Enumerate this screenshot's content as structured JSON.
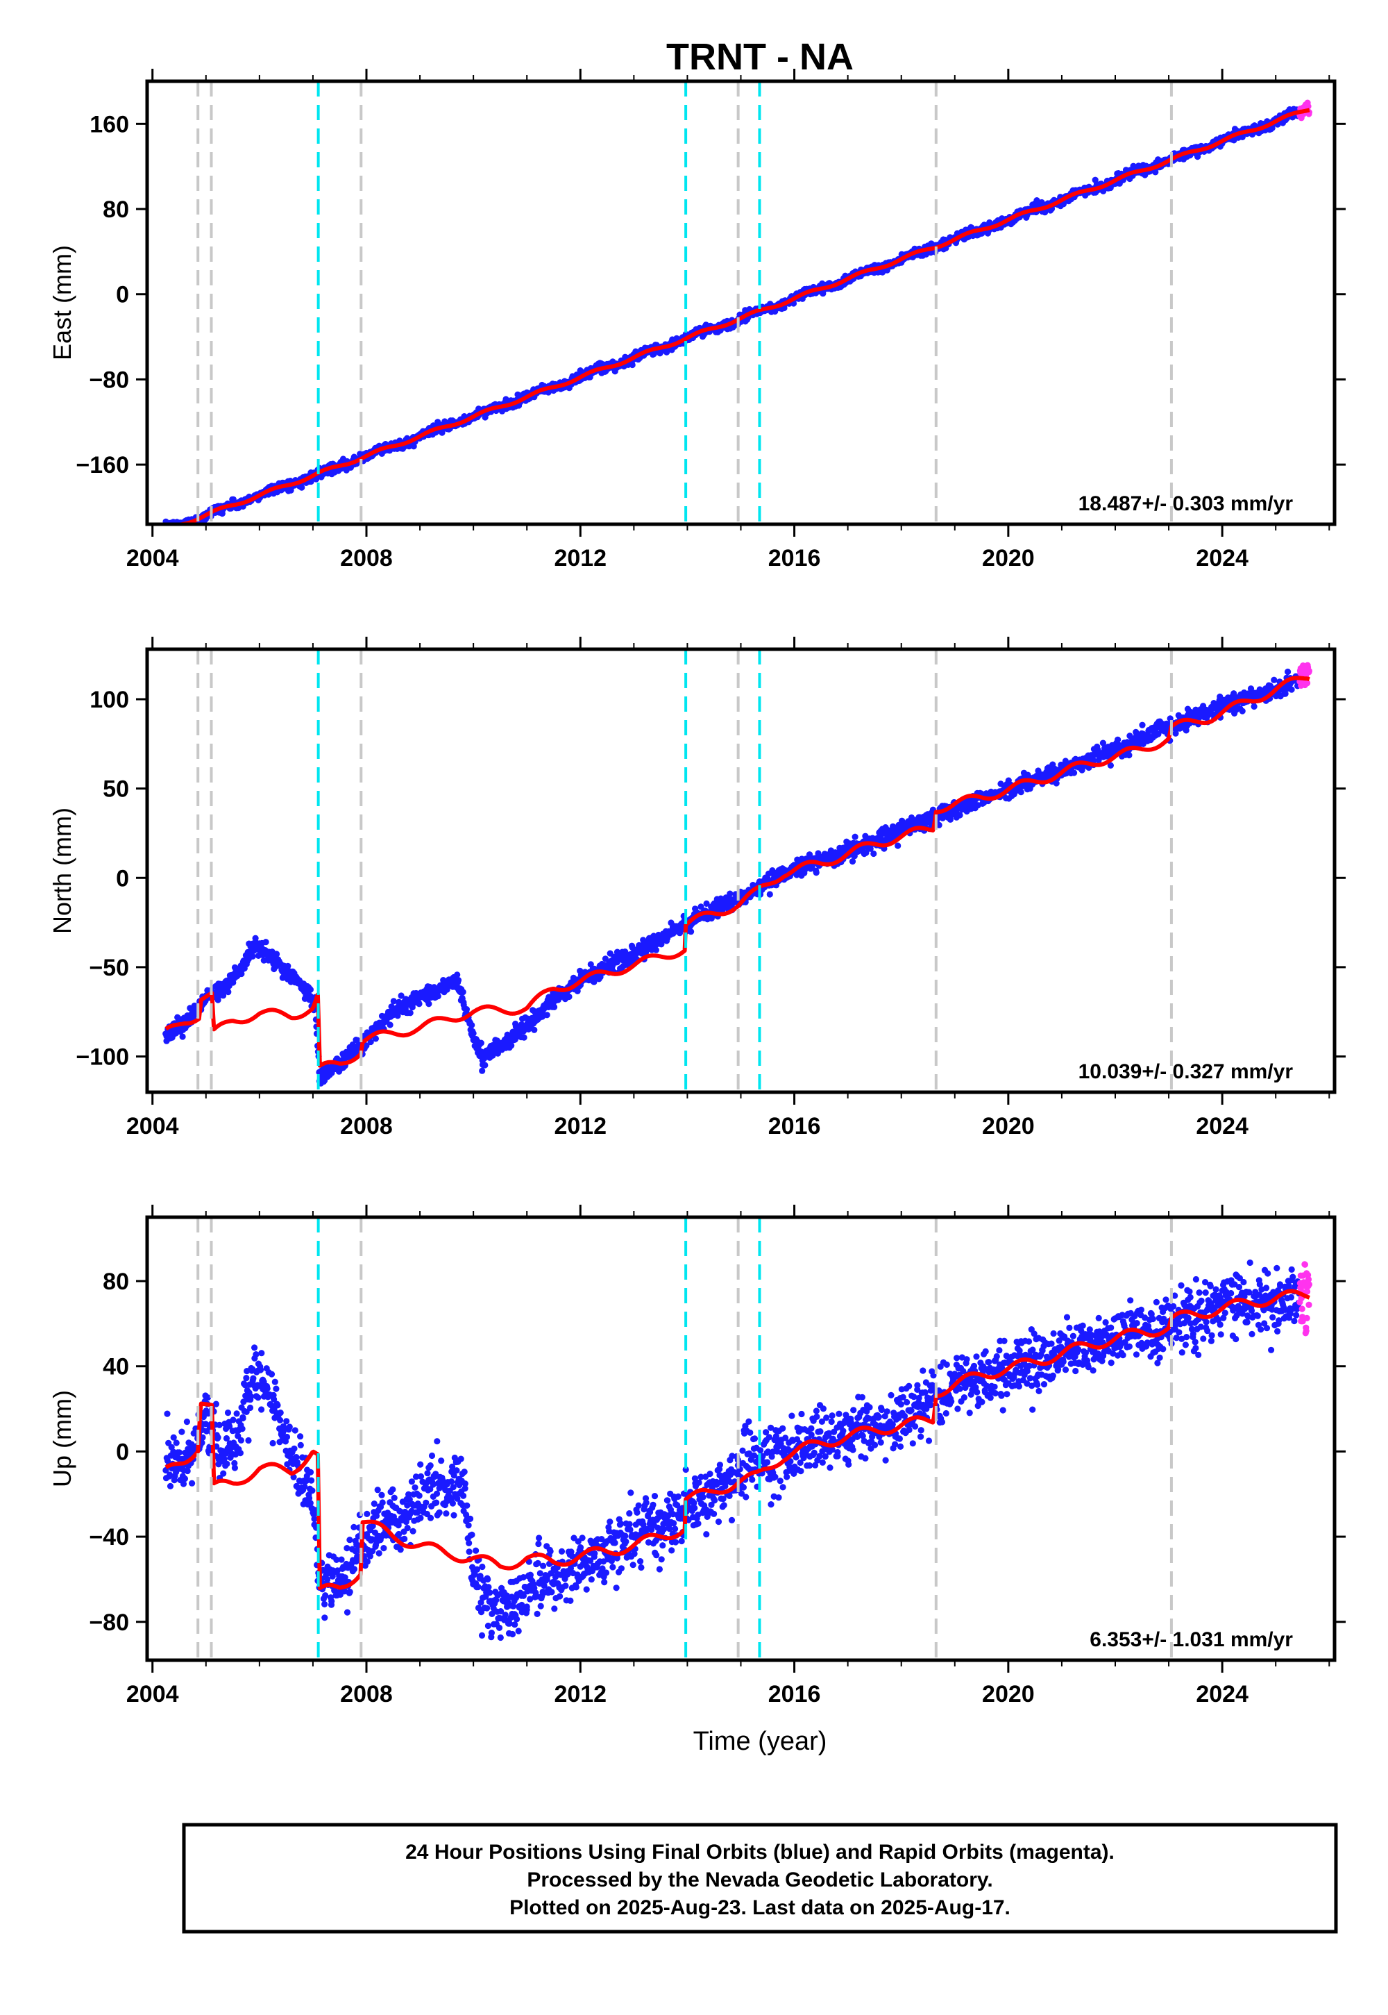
{
  "title": "TRNT - NA",
  "colors": {
    "final": "#1a1aff",
    "rapid": "#ff33ee",
    "model": "#ff0000",
    "antenna_change": "#c8c8c8",
    "earthquake": "#00e6f0"
  },
  "chart_data": [
    {
      "type": "scatter",
      "ylabel": "East (mm)",
      "rate_label": "18.487+/- 0.303 mm/yr",
      "xlim": [
        2003.9,
        2026.1
      ],
      "ylim": [
        -216,
        200
      ],
      "xticks": [
        2004,
        2008,
        2012,
        2016,
        2020,
        2024
      ],
      "xtick_labels": [
        "2004",
        "2008",
        "2012",
        "2016",
        "2020",
        "2024"
      ],
      "yticks": [
        160,
        80,
        0,
        -80,
        -160
      ],
      "ytick_labels": [
        "160",
        "80",
        "0",
        "−80",
        "−160"
      ],
      "model": {
        "rate": 18.487,
        "t0": 2016.0,
        "y0": -4,
        "annual_amp": 1.5,
        "offsets": []
      },
      "data_start": 2004.25,
      "data_end": 2025.45,
      "rapid_end": 2025.63,
      "noise": 2.2,
      "grid": false
    },
    {
      "type": "scatter",
      "ylabel": "North (mm)",
      "rate_label": "10.039+/- 0.327 mm/yr",
      "xlim": [
        2003.9,
        2026.1
      ],
      "ylim": [
        -120,
        128
      ],
      "xticks": [
        2004,
        2008,
        2012,
        2016,
        2020,
        2024
      ],
      "xtick_labels": [
        "2004",
        "2008",
        "2012",
        "2016",
        "2020",
        "2024"
      ],
      "yticks": [
        100,
        50,
        0,
        -50,
        -100
      ],
      "ytick_labels": [
        "100",
        "50",
        "0",
        "−50",
        "−100"
      ],
      "model_path": [
        [
          2004.25,
          -87
        ],
        [
          2004.6,
          -80
        ],
        [
          2004.88,
          -77
        ],
        [
          2004.9,
          -67
        ],
        [
          2005.12,
          -66
        ],
        [
          2005.14,
          -87
        ],
        [
          2005.5,
          -80
        ],
        [
          2006.0,
          -76
        ],
        [
          2006.6,
          -77
        ],
        [
          2007.0,
          -73
        ],
        [
          2007.1,
          -66
        ],
        [
          2007.12,
          -107
        ],
        [
          2007.5,
          -104
        ],
        [
          2007.9,
          -97
        ],
        [
          2007.92,
          -91
        ],
        [
          2008.5,
          -87
        ],
        [
          2009.0,
          -84
        ],
        [
          2009.5,
          -79
        ],
        [
          2010.0,
          -75
        ],
        [
          2010.5,
          -74
        ],
        [
          2011.0,
          -73
        ],
        [
          2011.5,
          -62
        ],
        [
          2012.0,
          -58
        ],
        [
          2012.5,
          -53
        ],
        [
          2013.0,
          -49
        ],
        [
          2013.5,
          -44
        ],
        [
          2013.95,
          -40
        ],
        [
          2013.97,
          -26
        ],
        [
          2014.4,
          -21
        ],
        [
          2014.95,
          -15
        ],
        [
          2015.3,
          -8
        ],
        [
          2015.8,
          3
        ],
        [
          2016.5,
          8
        ],
        [
          2017.5,
          19
        ],
        [
          2018.6,
          28
        ],
        [
          2018.65,
          39
        ],
        [
          2019.5,
          45
        ],
        [
          2020.5,
          54
        ],
        [
          2021.5,
          64
        ],
        [
          2022.5,
          72
        ],
        [
          2023.0,
          78
        ],
        [
          2023.05,
          84
        ],
        [
          2023.8,
          90
        ],
        [
          2024.5,
          99
        ],
        [
          2025.6,
          113
        ]
      ],
      "data_path": [
        [
          2004.25,
          -88
        ],
        [
          2004.6,
          -81
        ],
        [
          2004.85,
          -73
        ],
        [
          2005.0,
          -68
        ],
        [
          2005.3,
          -62
        ],
        [
          2005.5,
          -58
        ],
        [
          2005.7,
          -48
        ],
        [
          2005.9,
          -38
        ],
        [
          2006.1,
          -42
        ],
        [
          2006.4,
          -50
        ],
        [
          2006.8,
          -60
        ],
        [
          2007.05,
          -72
        ],
        [
          2007.12,
          -112
        ],
        [
          2007.6,
          -101
        ],
        [
          2008.0,
          -90
        ],
        [
          2008.5,
          -75
        ],
        [
          2009.0,
          -66
        ],
        [
          2009.4,
          -62
        ],
        [
          2009.7,
          -57
        ],
        [
          2009.9,
          -80
        ],
        [
          2010.15,
          -101
        ],
        [
          2010.6,
          -92
        ],
        [
          2011.0,
          -82
        ],
        [
          2011.5,
          -69
        ],
        [
          2012.0,
          -57
        ],
        [
          2012.5,
          -50
        ],
        [
          2013.0,
          -43
        ],
        [
          2013.5,
          -34
        ],
        [
          2013.95,
          -26
        ],
        [
          2014.5,
          -17
        ],
        [
          2015.0,
          -12
        ],
        [
          2015.5,
          -3
        ],
        [
          2016.0,
          5
        ],
        [
          2017.0,
          15
        ],
        [
          2018.0,
          27
        ],
        [
          2019.0,
          38
        ],
        [
          2020.0,
          50
        ],
        [
          2021.0,
          60
        ],
        [
          2022.0,
          72
        ],
        [
          2023.0,
          85
        ],
        [
          2024.0,
          96
        ],
        [
          2025.0,
          105
        ],
        [
          2025.6,
          116
        ]
      ],
      "data_start": 2004.25,
      "data_end": 2025.45,
      "rapid_end": 2025.63,
      "noise": 2.4,
      "grid": false
    },
    {
      "type": "scatter",
      "ylabel": "Up (mm)",
      "xlabel": "Time (year)",
      "rate_label": "6.353+/- 1.031 mm/yr",
      "xlim": [
        2003.9,
        2026.1
      ],
      "ylim": [
        -98,
        110
      ],
      "xticks": [
        2004,
        2008,
        2012,
        2016,
        2020,
        2024
      ],
      "xtick_labels": [
        "2004",
        "2008",
        "2012",
        "2016",
        "2020",
        "2024"
      ],
      "yticks": [
        80,
        40,
        0,
        -40,
        -80
      ],
      "ytick_labels": [
        "80",
        "40",
        "0",
        "−40",
        "−80"
      ],
      "model_path": [
        [
          2004.25,
          -10
        ],
        [
          2004.6,
          -4
        ],
        [
          2004.85,
          2
        ],
        [
          2004.9,
          24
        ],
        [
          2005.12,
          20
        ],
        [
          2005.14,
          -17
        ],
        [
          2005.5,
          -15
        ],
        [
          2006.0,
          -8
        ],
        [
          2006.6,
          -9
        ],
        [
          2007.0,
          0
        ],
        [
          2007.1,
          -3
        ],
        [
          2007.12,
          -66
        ],
        [
          2007.5,
          -64
        ],
        [
          2007.9,
          -56
        ],
        [
          2007.92,
          -32
        ],
        [
          2008.5,
          -40
        ],
        [
          2009.0,
          -44
        ],
        [
          2009.5,
          -48
        ],
        [
          2010.0,
          -50
        ],
        [
          2010.5,
          -54
        ],
        [
          2011.0,
          -50
        ],
        [
          2011.5,
          -52
        ],
        [
          2012.0,
          -49
        ],
        [
          2012.5,
          -47
        ],
        [
          2013.0,
          -44
        ],
        [
          2013.5,
          -40
        ],
        [
          2013.95,
          -36
        ],
        [
          2013.97,
          -22
        ],
        [
          2014.4,
          -20
        ],
        [
          2014.95,
          -14
        ],
        [
          2015.3,
          -12
        ],
        [
          2015.8,
          -2
        ],
        [
          2016.5,
          4
        ],
        [
          2017.5,
          10
        ],
        [
          2018.6,
          15
        ],
        [
          2018.65,
          28
        ],
        [
          2019.5,
          36
        ],
        [
          2020.5,
          42
        ],
        [
          2021.5,
          50
        ],
        [
          2022.5,
          56
        ],
        [
          2023.0,
          58
        ],
        [
          2023.05,
          62
        ],
        [
          2023.8,
          66
        ],
        [
          2024.5,
          70
        ],
        [
          2025.6,
          74
        ]
      ],
      "data_path": [
        [
          2004.25,
          -8
        ],
        [
          2004.6,
          -2
        ],
        [
          2004.85,
          8
        ],
        [
          2005.0,
          15
        ],
        [
          2005.3,
          0
        ],
        [
          2005.6,
          10
        ],
        [
          2005.85,
          38
        ],
        [
          2006.1,
          30
        ],
        [
          2006.4,
          12
        ],
        [
          2006.8,
          -8
        ],
        [
          2007.05,
          -30
        ],
        [
          2007.12,
          -68
        ],
        [
          2007.5,
          -58
        ],
        [
          2007.95,
          -45
        ],
        [
          2008.5,
          -32
        ],
        [
          2009.0,
          -22
        ],
        [
          2009.5,
          -18
        ],
        [
          2009.8,
          -12
        ],
        [
          2010.0,
          -55
        ],
        [
          2010.3,
          -76
        ],
        [
          2010.8,
          -70
        ],
        [
          2011.3,
          -60
        ],
        [
          2011.8,
          -55
        ],
        [
          2012.3,
          -50
        ],
        [
          2012.8,
          -42
        ],
        [
          2013.3,
          -36
        ],
        [
          2013.95,
          -28
        ],
        [
          2014.5,
          -18
        ],
        [
          2015.0,
          -8
        ],
        [
          2015.5,
          -2
        ],
        [
          2016.0,
          0
        ],
        [
          2017.0,
          8
        ],
        [
          2018.0,
          16
        ],
        [
          2019.0,
          30
        ],
        [
          2020.0,
          38
        ],
        [
          2021.0,
          46
        ],
        [
          2022.0,
          52
        ],
        [
          2023.0,
          60
        ],
        [
          2024.0,
          68
        ],
        [
          2025.0,
          70
        ],
        [
          2025.6,
          74
        ]
      ],
      "data_start": 2004.25,
      "data_end": 2025.45,
      "rapid_end": 2025.63,
      "noise": 7.0,
      "grid": false
    }
  ],
  "antenna_change_years": [
    2004.85,
    2005.1,
    2007.9,
    2014.95,
    2018.65,
    2023.05
  ],
  "earthquake_years": [
    2007.1,
    2013.97,
    2015.35
  ],
  "footer": {
    "line1": "24 Hour Positions Using Final Orbits (blue) and Rapid Orbits (magenta).",
    "line2": "Processed by the Nevada Geodetic Laboratory.",
    "line3": "Plotted on 2025-Aug-23. Last data on 2025-Aug-17."
  }
}
